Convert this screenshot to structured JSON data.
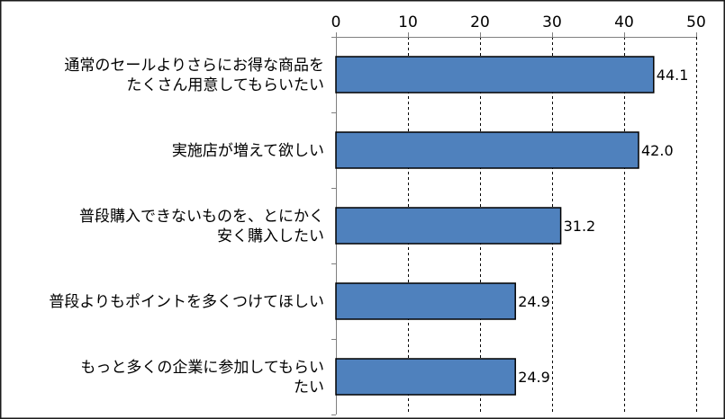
{
  "chart_data": {
    "type": "bar",
    "orientation": "horizontal",
    "categories": [
      [
        "通常のセールよりさらにお得な商品を",
        "たくさん用意してもらいたい"
      ],
      [
        "実施店が増えて欲しい"
      ],
      [
        "普段購入できないものを、とにかく",
        "安く購入したい"
      ],
      [
        "普段よりもポイントを多くつけてほしい"
      ],
      [
        "もっと多くの企業に参加してもらい",
        "たい"
      ]
    ],
    "values": [
      44.1,
      42.0,
      31.2,
      24.9,
      24.9
    ],
    "data_labels": [
      "44.1",
      "42.0",
      "31.2",
      "24.9",
      "24.9"
    ],
    "xlim": [
      0,
      50
    ],
    "ticks": [
      0,
      10,
      20,
      30,
      40,
      50
    ],
    "tick_labels": [
      "0",
      "10",
      "20",
      "30",
      "40",
      "50"
    ],
    "x_axis_position": "top",
    "grid": true,
    "bar_color": "#4f81bd"
  }
}
